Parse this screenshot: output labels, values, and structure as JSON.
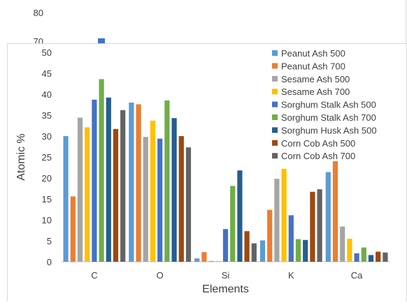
{
  "chart_data": [
    {
      "type": "bar",
      "note_visible_ticks": [
        "80",
        "70"
      ],
      "series": [
        {
          "name": "",
          "values": [
            71
          ]
        }
      ],
      "colors": [
        "#4472C4"
      ]
    },
    {
      "type": "bar",
      "title": "",
      "xlabel": "Elements",
      "ylabel": "Atomic %",
      "ylim": [
        0,
        50
      ],
      "yticks": [
        "0",
        "5",
        "10",
        "15",
        "20",
        "25",
        "30",
        "35",
        "40",
        "45",
        "50"
      ],
      "grid": false,
      "legend_position": "top-right",
      "categories": [
        "C",
        "O",
        "Si",
        "K",
        "Ca"
      ],
      "series": [
        {
          "name": "Peanut Ash 500",
          "color": "#5B9BD5",
          "values": [
            30.0,
            38.0,
            0.8,
            5.1,
            21.4
          ]
        },
        {
          "name": "Peanut Ash 700",
          "color": "#ED7D31",
          "values": [
            15.6,
            37.6,
            2.3,
            12.4,
            24.0
          ]
        },
        {
          "name": "Sesame Ash 500",
          "color": "#A5A5A5",
          "values": [
            34.4,
            29.8,
            0.2,
            19.8,
            8.4
          ]
        },
        {
          "name": "Sesame Ash 700",
          "color": "#FFC000",
          "values": [
            32.1,
            33.7,
            0.2,
            22.2,
            5.5
          ]
        },
        {
          "name": "Sorghum Stalk Ash 500",
          "color": "#4472C4",
          "values": [
            38.7,
            29.4,
            7.8,
            11.1,
            2.0
          ]
        },
        {
          "name": "Sorghum Stalk Ash 700",
          "color": "#70AD47",
          "values": [
            43.6,
            38.5,
            18.1,
            5.4,
            3.4
          ]
        },
        {
          "name": "Sorghum Husk Ash 500",
          "color": "#255E91",
          "values": [
            39.2,
            34.3,
            21.8,
            5.2,
            1.6
          ]
        },
        {
          "name": "Corn Cob Ash 500",
          "color": "#9E480E",
          "values": [
            31.7,
            30.0,
            7.3,
            16.7,
            2.4
          ]
        },
        {
          "name": "Corn Cob Ash 700",
          "color": "#636363",
          "values": [
            36.2,
            27.3,
            4.4,
            17.3,
            2.2
          ]
        }
      ]
    }
  ]
}
